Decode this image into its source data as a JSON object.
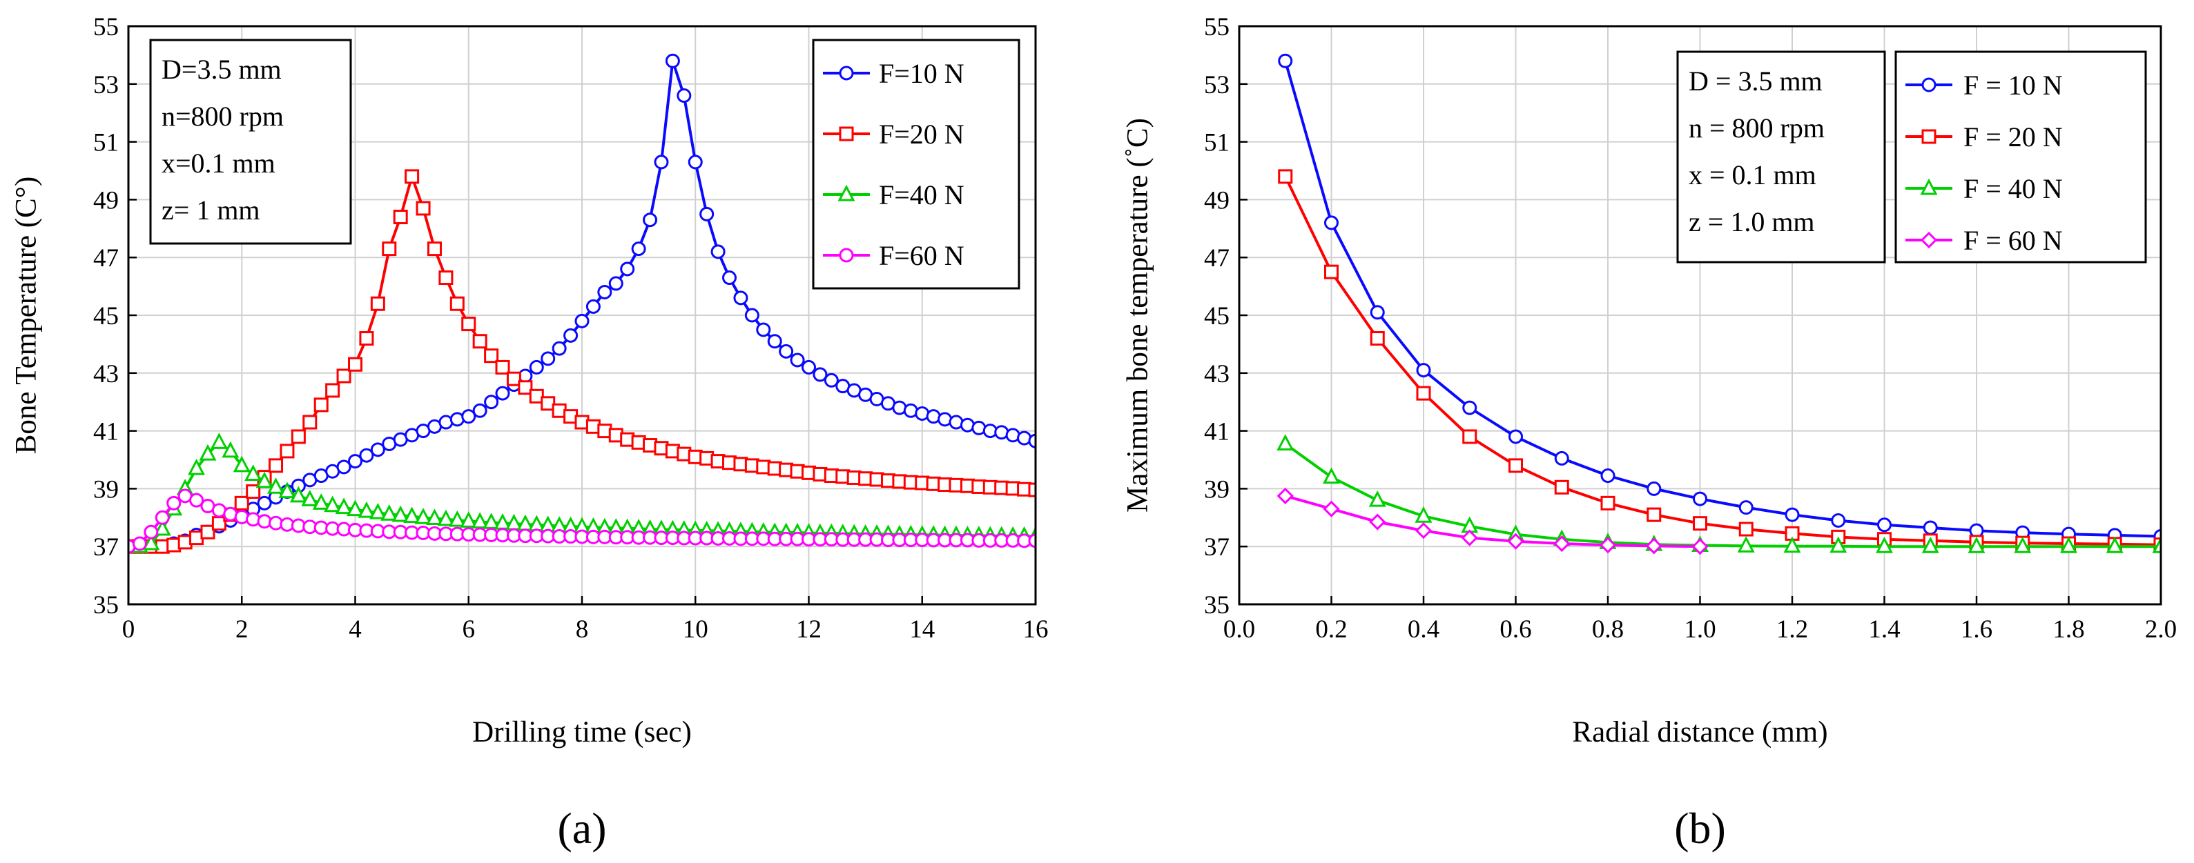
{
  "chart_data": [
    {
      "type": "line",
      "panel_label": "(a)",
      "xlabel": "Drilling time (sec)",
      "ylabel": "Bone Temperature (C°)",
      "xlim": [
        0,
        16
      ],
      "ylim": [
        35,
        55
      ],
      "xticks": [
        "0",
        "2",
        "4",
        "6",
        "8",
        "10",
        "12",
        "14",
        "16"
      ],
      "yticks": [
        "35",
        "37",
        "39",
        "41",
        "43",
        "45",
        "47",
        "49",
        "51",
        "53",
        "55"
      ],
      "grid": true,
      "info_box": [
        "D=3.5 mm",
        "n=800 rpm",
        "x=0.1 mm",
        "z= 1 mm"
      ],
      "legend_position": "top-right",
      "series": [
        {
          "name": "F=10 N",
          "color": "#0a0aff",
          "marker": "circle",
          "x": [
            0,
            0.2,
            0.4,
            0.6,
            0.8,
            1,
            1.2,
            1.4,
            1.6,
            1.8,
            2,
            2.2,
            2.4,
            2.6,
            2.8,
            3,
            3.2,
            3.4,
            3.6,
            3.8,
            4,
            4.2,
            4.4,
            4.6,
            4.8,
            5,
            5.2,
            5.4,
            5.6,
            5.8,
            6,
            6.2,
            6.4,
            6.6,
            6.8,
            7,
            7.2,
            7.4,
            7.6,
            7.8,
            8,
            8.2,
            8.4,
            8.6,
            8.8,
            9,
            9.2,
            9.4,
            9.6,
            9.8,
            10,
            10.2,
            10.4,
            10.6,
            10.8,
            11,
            11.2,
            11.4,
            11.6,
            11.8,
            12,
            12.2,
            12.4,
            12.6,
            12.8,
            13,
            13.2,
            13.4,
            13.6,
            13.8,
            14,
            14.2,
            14.4,
            14.6,
            14.8,
            15,
            15.2,
            15.4,
            15.6,
            15.8,
            16
          ],
          "y": [
            37,
            37,
            37,
            37,
            37.1,
            37.2,
            37.4,
            37.5,
            37.7,
            37.9,
            38.1,
            38.3,
            38.5,
            38.7,
            38.9,
            39.1,
            39.3,
            39.45,
            39.6,
            39.75,
            39.95,
            40.15,
            40.35,
            40.55,
            40.7,
            40.85,
            41,
            41.15,
            41.3,
            41.4,
            41.5,
            41.7,
            42,
            42.3,
            42.6,
            42.9,
            43.2,
            43.5,
            43.85,
            44.3,
            44.8,
            45.3,
            45.8,
            46.1,
            46.6,
            47.3,
            48.3,
            50.3,
            53.8,
            52.6,
            50.3,
            48.5,
            47.2,
            46.3,
            45.6,
            45,
            44.5,
            44.1,
            43.75,
            43.45,
            43.2,
            42.95,
            42.75,
            42.55,
            42.4,
            42.25,
            42.1,
            41.95,
            41.8,
            41.7,
            41.6,
            41.5,
            41.4,
            41.3,
            41.2,
            41.1,
            41,
            40.95,
            40.85,
            40.75,
            40.65
          ]
        },
        {
          "name": "F=20 N",
          "color": "#ff0000",
          "marker": "square",
          "x": [
            0,
            0.2,
            0.4,
            0.6,
            0.8,
            1,
            1.2,
            1.4,
            1.6,
            1.8,
            2,
            2.2,
            2.4,
            2.6,
            2.8,
            3,
            3.2,
            3.4,
            3.6,
            3.8,
            4,
            4.2,
            4.4,
            4.6,
            4.8,
            5,
            5.2,
            5.4,
            5.6,
            5.8,
            6,
            6.2,
            6.4,
            6.6,
            6.8,
            7,
            7.2,
            7.4,
            7.6,
            7.8,
            8,
            8.2,
            8.4,
            8.6,
            8.8,
            9,
            9.2,
            9.4,
            9.6,
            9.8,
            10,
            10.2,
            10.4,
            10.6,
            10.8,
            11,
            11.2,
            11.4,
            11.6,
            11.8,
            12,
            12.2,
            12.4,
            12.6,
            12.8,
            13,
            13.2,
            13.4,
            13.6,
            13.8,
            14,
            14.2,
            14.4,
            14.6,
            14.8,
            15,
            15.2,
            15.4,
            15.6,
            15.8,
            16
          ],
          "y": [
            37,
            37,
            37,
            37,
            37.05,
            37.15,
            37.3,
            37.5,
            37.8,
            38.1,
            38.5,
            38.9,
            39.4,
            39.8,
            40.3,
            40.8,
            41.3,
            41.9,
            42.4,
            42.9,
            43.3,
            44.2,
            45.4,
            47.3,
            48.4,
            49.8,
            48.7,
            47.3,
            46.3,
            45.4,
            44.7,
            44.1,
            43.6,
            43.2,
            42.8,
            42.5,
            42.2,
            41.95,
            41.7,
            41.5,
            41.3,
            41.15,
            41,
            40.85,
            40.7,
            40.6,
            40.5,
            40.4,
            40.3,
            40.2,
            40.1,
            40.05,
            39.95,
            39.9,
            39.85,
            39.8,
            39.75,
            39.7,
            39.65,
            39.6,
            39.55,
            39.5,
            39.45,
            39.42,
            39.38,
            39.35,
            39.32,
            39.28,
            39.25,
            39.22,
            39.2,
            39.17,
            39.14,
            39.12,
            39.1,
            39.07,
            39.05,
            39.03,
            39.01,
            38.98,
            38.96
          ]
        },
        {
          "name": "F=40 N",
          "color": "#00d000",
          "marker": "triangle",
          "x": [
            0,
            0.2,
            0.4,
            0.6,
            0.8,
            1,
            1.2,
            1.4,
            1.6,
            1.8,
            2,
            2.2,
            2.4,
            2.6,
            2.8,
            3,
            3.2,
            3.4,
            3.6,
            3.8,
            4,
            4.2,
            4.4,
            4.6,
            4.8,
            5,
            5.2,
            5.4,
            5.6,
            5.8,
            6,
            6.2,
            6.4,
            6.6,
            6.8,
            7,
            7.2,
            7.4,
            7.6,
            7.8,
            8,
            8.2,
            8.4,
            8.6,
            8.8,
            9,
            9.2,
            9.4,
            9.6,
            9.8,
            10,
            10.2,
            10.4,
            10.6,
            10.8,
            11,
            11.2,
            11.4,
            11.6,
            11.8,
            12,
            12.2,
            12.4,
            12.6,
            12.8,
            13,
            13.2,
            13.4,
            13.6,
            13.8,
            14,
            14.2,
            14.4,
            14.6,
            14.8,
            15,
            15.2,
            15.4,
            15.6,
            15.8,
            16
          ],
          "y": [
            37,
            37,
            37.1,
            37.6,
            38.3,
            39,
            39.7,
            40.2,
            40.6,
            40.3,
            39.8,
            39.5,
            39.25,
            39.05,
            38.9,
            38.75,
            38.62,
            38.5,
            38.42,
            38.35,
            38.28,
            38.22,
            38.17,
            38.12,
            38.08,
            38.04,
            38,
            37.97,
            37.94,
            37.91,
            37.88,
            37.85,
            37.83,
            37.81,
            37.79,
            37.77,
            37.75,
            37.73,
            37.71,
            37.7,
            37.68,
            37.67,
            37.65,
            37.64,
            37.63,
            37.62,
            37.6,
            37.59,
            37.58,
            37.57,
            37.56,
            37.55,
            37.54,
            37.53,
            37.52,
            37.51,
            37.5,
            37.49,
            37.49,
            37.48,
            37.47,
            37.46,
            37.46,
            37.45,
            37.44,
            37.43,
            37.43,
            37.42,
            37.41,
            37.41,
            37.4,
            37.4,
            37.39,
            37.39,
            37.38,
            37.38,
            37.37,
            37.37,
            37.36,
            37.36,
            37.35
          ]
        },
        {
          "name": "F=60 N",
          "color": "#ff00ff",
          "marker": "circle",
          "x": [
            0,
            0.2,
            0.4,
            0.6,
            0.8,
            1,
            1.2,
            1.4,
            1.6,
            1.8,
            2,
            2.2,
            2.4,
            2.6,
            2.8,
            3,
            3.2,
            3.4,
            3.6,
            3.8,
            4,
            4.2,
            4.4,
            4.6,
            4.8,
            5,
            5.2,
            5.4,
            5.6,
            5.8,
            6,
            6.2,
            6.4,
            6.6,
            6.8,
            7,
            7.2,
            7.4,
            7.6,
            7.8,
            8,
            8.2,
            8.4,
            8.6,
            8.8,
            9,
            9.2,
            9.4,
            9.6,
            9.8,
            10,
            10.2,
            10.4,
            10.6,
            10.8,
            11,
            11.2,
            11.4,
            11.6,
            11.8,
            12,
            12.2,
            12.4,
            12.6,
            12.8,
            13,
            13.2,
            13.4,
            13.6,
            13.8,
            14,
            14.2,
            14.4,
            14.6,
            14.8,
            15,
            15.2,
            15.4,
            15.6,
            15.8,
            16
          ],
          "y": [
            37,
            37.1,
            37.5,
            38,
            38.5,
            38.75,
            38.6,
            38.4,
            38.25,
            38.12,
            38.02,
            37.94,
            37.87,
            37.81,
            37.76,
            37.72,
            37.68,
            37.65,
            37.62,
            37.6,
            37.57,
            37.55,
            37.53,
            37.51,
            37.5,
            37.48,
            37.47,
            37.45,
            37.44,
            37.43,
            37.42,
            37.41,
            37.4,
            37.39,
            37.38,
            37.37,
            37.37,
            37.36,
            37.35,
            37.35,
            37.34,
            37.33,
            37.33,
            37.32,
            37.32,
            37.31,
            37.31,
            37.3,
            37.3,
            37.29,
            37.29,
            37.29,
            37.28,
            37.28,
            37.27,
            37.27,
            37.27,
            37.26,
            37.26,
            37.26,
            37.25,
            37.25,
            37.25,
            37.24,
            37.24,
            37.24,
            37.24,
            37.23,
            37.23,
            37.23,
            37.23,
            37.22,
            37.22,
            37.22,
            37.22,
            37.21,
            37.21,
            37.21,
            37.21,
            37.2,
            37.2
          ]
        }
      ]
    },
    {
      "type": "line",
      "panel_label": "(b)",
      "xlabel": "Radial distance (mm)",
      "ylabel": "Maximum bone temperature (˚C)",
      "xlim": [
        0,
        2
      ],
      "ylim": [
        35,
        55
      ],
      "xticks": [
        "0.0",
        "0.2",
        "0.4",
        "0.6",
        "0.8",
        "1.0",
        "1.2",
        "1.4",
        "1.6",
        "1.8",
        "2.0"
      ],
      "yticks": [
        "35",
        "37",
        "39",
        "41",
        "43",
        "45",
        "47",
        "49",
        "51",
        "53",
        "55"
      ],
      "grid": true,
      "info_box": [
        "D = 3.5 mm",
        "n = 800 rpm",
        "x = 0.1 mm",
        "z = 1.0 mm"
      ],
      "legend_position": "top-right",
      "series": [
        {
          "name": "F = 10 N",
          "color": "#0a0aff",
          "marker": "circle",
          "x": [
            0.1,
            0.2,
            0.3,
            0.4,
            0.5,
            0.6,
            0.7,
            0.8,
            0.9,
            1.0,
            1.1,
            1.2,
            1.3,
            1.4,
            1.5,
            1.6,
            1.7,
            1.8,
            1.9,
            2.0
          ],
          "y": [
            53.8,
            48.2,
            45.1,
            43.1,
            41.8,
            40.8,
            40.05,
            39.45,
            39.0,
            38.65,
            38.35,
            38.1,
            37.9,
            37.75,
            37.65,
            37.55,
            37.48,
            37.43,
            37.39,
            37.35
          ]
        },
        {
          "name": "F = 20 N",
          "color": "#ff0000",
          "marker": "square",
          "x": [
            0.1,
            0.2,
            0.3,
            0.4,
            0.5,
            0.6,
            0.7,
            0.8,
            0.9,
            1.0,
            1.1,
            1.2,
            1.3,
            1.4,
            1.5,
            1.6,
            1.7,
            1.8,
            1.9,
            2.0
          ],
          "y": [
            49.8,
            46.5,
            44.2,
            42.3,
            40.8,
            39.8,
            39.05,
            38.5,
            38.1,
            37.8,
            37.6,
            37.45,
            37.33,
            37.25,
            37.2,
            37.15,
            37.12,
            37.1,
            37.08,
            37.06
          ]
        },
        {
          "name": "F = 40 N",
          "color": "#00d000",
          "marker": "triangle",
          "x": [
            0.1,
            0.2,
            0.3,
            0.4,
            0.5,
            0.6,
            0.7,
            0.8,
            0.9,
            1.0,
            1.1,
            1.2,
            1.3,
            1.4,
            1.5,
            1.6,
            1.7,
            1.8,
            1.9,
            2.0
          ],
          "y": [
            40.55,
            39.4,
            38.6,
            38.05,
            37.7,
            37.42,
            37.25,
            37.14,
            37.07,
            37.04,
            37.02,
            37.01,
            37.01,
            37.0,
            37.0,
            37.0,
            37.0,
            37.0,
            37.0,
            37.0
          ]
        },
        {
          "name": "F = 60 N",
          "color": "#ff00ff",
          "marker": "diamond",
          "x": [
            0.1,
            0.2,
            0.3,
            0.4,
            0.5,
            0.6,
            0.7,
            0.8,
            0.9,
            1.0
          ],
          "y": [
            38.75,
            38.3,
            37.85,
            37.55,
            37.3,
            37.18,
            37.1,
            37.05,
            37.02,
            37.0
          ]
        }
      ]
    }
  ]
}
